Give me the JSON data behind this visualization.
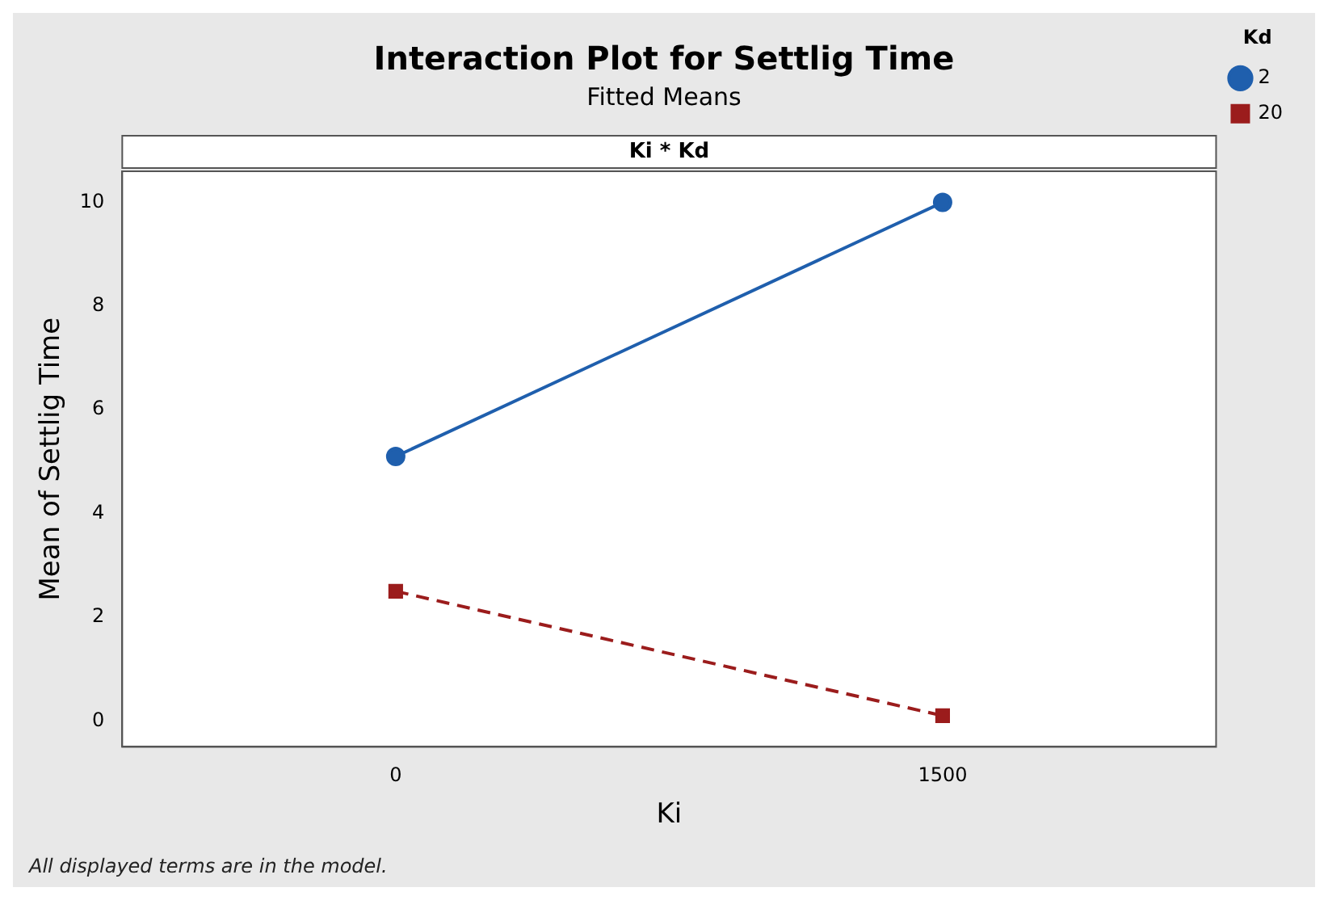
{
  "chart_data": {
    "type": "line",
    "title": "Interaction Plot for Settlig Time",
    "subtitle": "Fitted Means",
    "xlabel": "Ki",
    "ylabel": "Mean of Settlig Time",
    "legend_title": "Kd",
    "annotations": [
      "Ki * Kd",
      "All displayed terms are in the model."
    ],
    "categories": [
      "0",
      "1500"
    ],
    "series": [
      {
        "name": "2",
        "color": "#1f5fad",
        "values": [
          5.1,
          10.0
        ],
        "marker": "circle",
        "line_style": "solid"
      },
      {
        "name": "20",
        "color": "#9b1c1c",
        "values": [
          2.5,
          0.1
        ],
        "marker": "square",
        "line_style": "dashed"
      }
    ],
    "ylim": [
      -0.5,
      10.6
    ],
    "yticks": [
      0,
      2,
      4,
      6,
      8,
      10
    ],
    "grid": false,
    "legend": "top right"
  }
}
